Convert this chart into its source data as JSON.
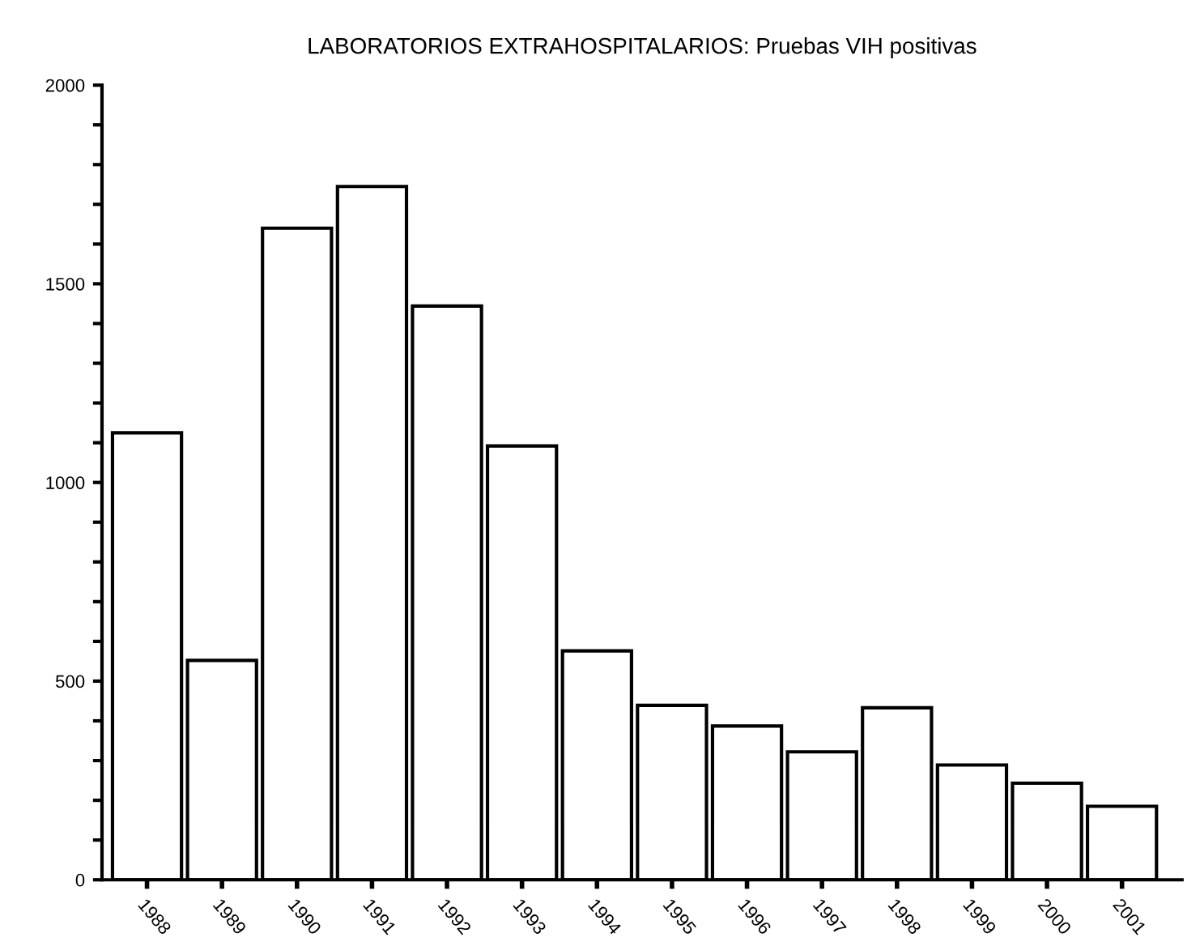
{
  "chart_data": {
    "type": "bar",
    "title": "LABORATORIOS EXTRAHOSPITALARIOS: Pruebas VIH positivas",
    "categories": [
      "1988",
      "1989",
      "1990",
      "1991",
      "1992",
      "1993",
      "1994",
      "1995",
      "1996",
      "1997",
      "1998",
      "1999",
      "2000",
      "2001"
    ],
    "values": [
      1125,
      552,
      1640,
      1745,
      1444,
      1092,
      576,
      439,
      387,
      322,
      433,
      289,
      243,
      185
    ],
    "color": "#ffffff",
    "ylim": [
      0,
      2000
    ],
    "yticks": [
      0,
      {
        "value": 100,
        "label": null
      },
      {
        "value": 200,
        "label": null
      },
      {
        "value": 300,
        "label": null
      },
      {
        "value": 400,
        "label": null
      },
      500,
      {
        "value": 600,
        "label": null
      },
      {
        "value": 700,
        "label": null
      },
      {
        "value": 800,
        "label": null
      },
      {
        "value": 900,
        "label": null
      },
      1000,
      {
        "value": 1100,
        "label": null
      },
      {
        "value": 1200,
        "label": null
      },
      {
        "value": 1300,
        "label": null
      },
      {
        "value": 1400,
        "label": null
      },
      1500,
      {
        "value": 1600,
        "label": null
      },
      {
        "value": 1700,
        "label": null
      },
      {
        "value": 1800,
        "label": null
      },
      {
        "value": 1900,
        "label": null
      },
      2000
    ],
    "grid": false
  }
}
